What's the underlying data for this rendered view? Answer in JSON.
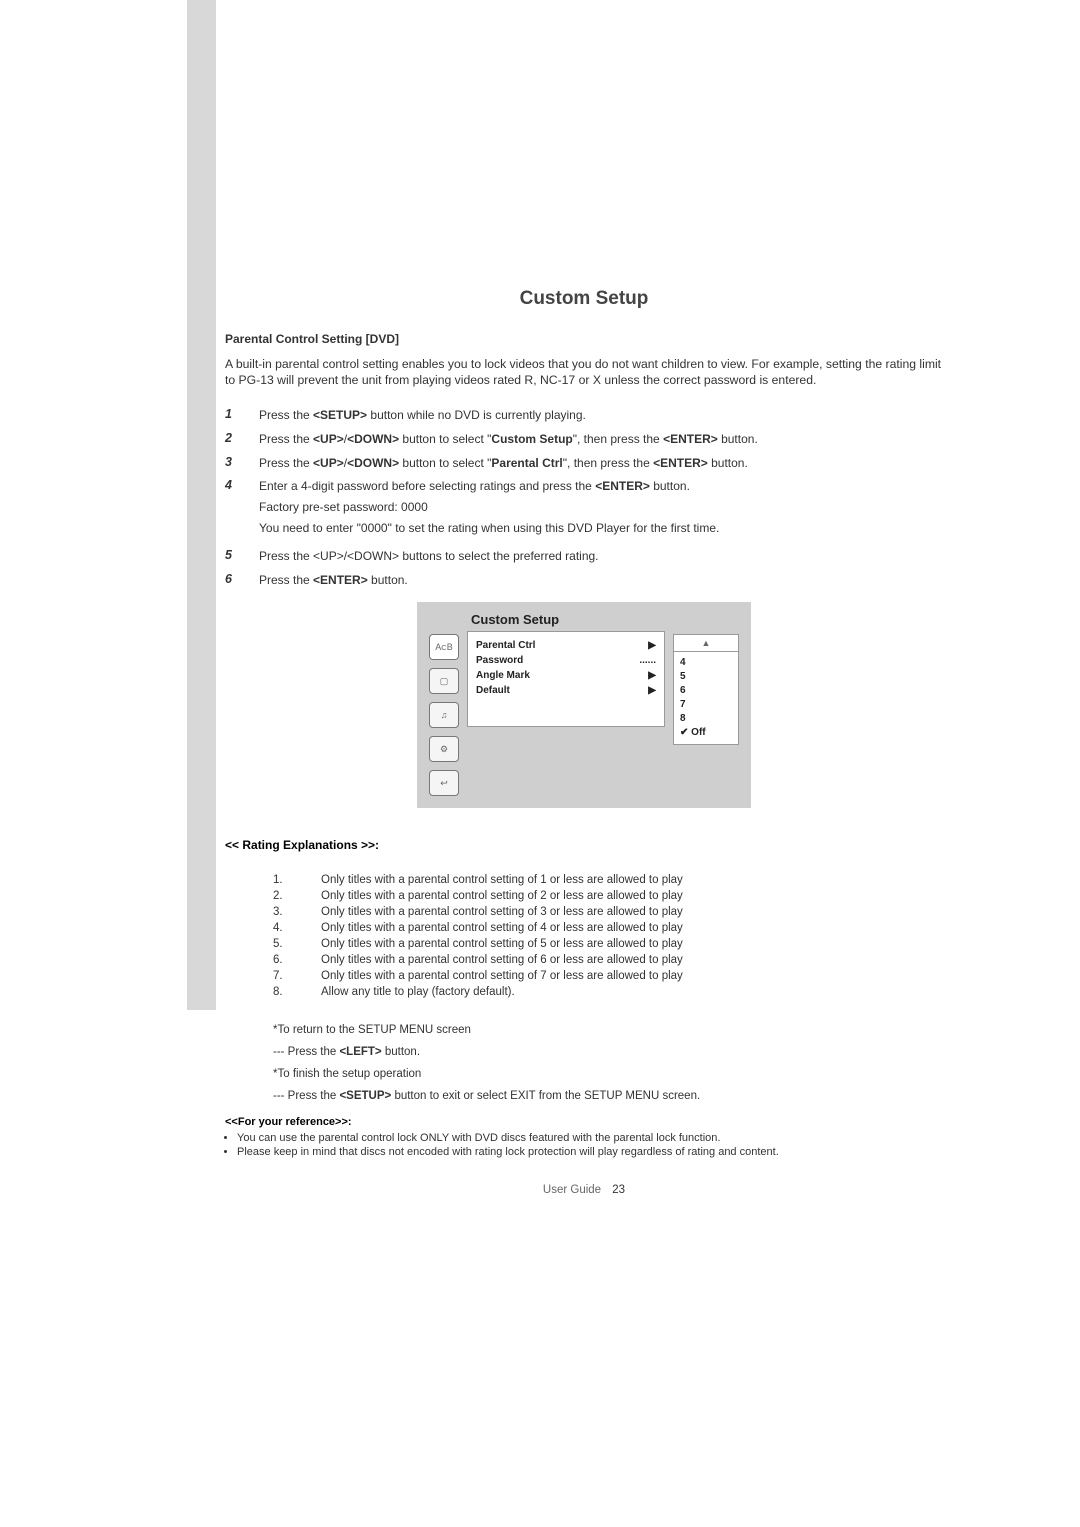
{
  "page": {
    "title": "Custom Setup",
    "subtitle": "Parental Control Setting [DVD]",
    "intro": "A built-in parental control setting enables you to lock videos that you do not want children to view. For example, setting the rating limit to PG-13 will prevent the unit from playing videos rated R, NC-17 or X unless the correct password is entered.",
    "footer_label": "User Guide",
    "footer_page": "23"
  },
  "steps": [
    {
      "n": "1",
      "html": "Press the <b>&lt;SETUP&gt;</b> button while no DVD is currently playing."
    },
    {
      "n": "2",
      "html": "Press the <b>&lt;UP&gt;</b>/<b>&lt;DOWN&gt;</b> button to select \"<b>Custom Setup</b>\", then press the <b>&lt;ENTER&gt;</b> button."
    },
    {
      "n": "3",
      "html": "Press the <b>&lt;UP&gt;</b>/<b>&lt;DOWN&gt;</b> button to select \"<b>Parental Ctrl</b>\", then press the <b>&lt;ENTER&gt;</b> button."
    },
    {
      "n": "4",
      "html": "Enter a 4-digit password before selecting ratings and press the <b>&lt;ENTER&gt;</b> button.<div class=\"sub-line\">Factory pre-set password: 0000</div><div class=\"sub-line\">You need to enter \"0000\" to set the rating when using this DVD Player for the first time.</div>"
    },
    {
      "n": "5",
      "html": "Press the &lt;UP&gt;/&lt;DOWN&gt; buttons to select the preferred rating."
    },
    {
      "n": "6",
      "html": "Press the <b>&lt;ENTER&gt;</b> button."
    }
  ],
  "osd": {
    "title": "Custom Setup",
    "left_icons": [
      "A<sub>C</sub>B",
      "▢",
      "♫",
      "⚙",
      "↩"
    ],
    "menu": [
      {
        "label": "Parental Ctrl",
        "mark": "▶"
      },
      {
        "label": "Password",
        "mark": "......"
      },
      {
        "label": "Angle Mark",
        "mark": "▶"
      },
      {
        "label": "Default",
        "mark": "▶"
      }
    ],
    "right_top_glyph": "▲",
    "right_list": [
      "4",
      "5",
      "6",
      "7",
      "8"
    ],
    "right_checked": "Off"
  },
  "ratings": {
    "header": "<< Rating Explanations >>:",
    "items": [
      {
        "n": "1.",
        "t": "Only titles with a parental control setting of 1 or less are allowed to play"
      },
      {
        "n": "2.",
        "t": "Only titles with a parental control setting of 2 or less are allowed to play"
      },
      {
        "n": "3.",
        "t": "Only titles with a parental control setting of 3 or less are allowed to play"
      },
      {
        "n": "4.",
        "t": "Only titles with a parental control setting of 4 or less are allowed to play"
      },
      {
        "n": "5.",
        "t": "Only titles with a parental control setting of 5 or less are allowed to play"
      },
      {
        "n": "6.",
        "t": "Only titles with a parental control setting of 6 or less are allowed to play"
      },
      {
        "n": "7.",
        "t": "Only titles with a parental control setting of 7 or less are allowed to play"
      },
      {
        "n": "8.",
        "t": "Allow any title to play (factory default)."
      }
    ]
  },
  "notes": {
    "return_label": "*To return to the SETUP MENU screen",
    "return_action_html": "--- Press the <b>&lt;LEFT&gt;</b> button.",
    "finish_label": "*To finish the setup operation",
    "finish_action_html": "--- Press the <b>&lt;SETUP&gt;</b> button to exit or select EXIT from the SETUP MENU screen."
  },
  "reference": {
    "header": "<<For your reference>>:",
    "bullets": [
      "You can use the parental control lock ONLY with DVD discs featured with the parental lock function.",
      "Please keep in mind that discs not encoded with rating lock protection will play regardless of rating and content."
    ]
  },
  "colors": {
    "sidebar": "#d8d8d8",
    "osd_bg": "#cfcfcf",
    "panel_bg": "#ffffff",
    "border": "#999999",
    "text": "#333333",
    "title": "#444444"
  }
}
